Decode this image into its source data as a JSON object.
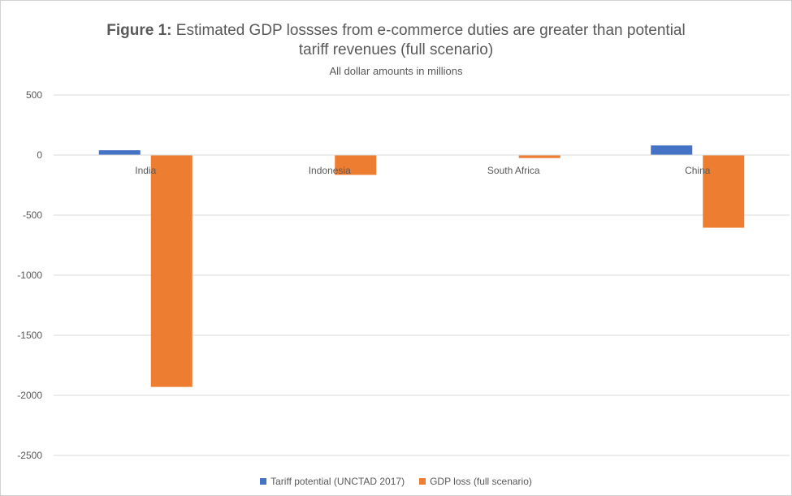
{
  "chart_data": {
    "type": "bar",
    "title_bold": "Figure 1:",
    "title_line1": "Estimated GDP lossses from e-commerce duties are greater than potential",
    "title_line2": "tariff revenues (full scenario)",
    "subtitle": "All dollar amounts in millions",
    "categories": [
      "India",
      "Indonesia",
      "South Africa",
      "China"
    ],
    "series": [
      {
        "name": "Tariff potential (UNCTAD 2017)",
        "color": "#4472C4",
        "values": [
          40,
          0,
          0,
          80
        ]
      },
      {
        "name": "GDP loss (full scenario)",
        "color": "#ED7D31",
        "values": [
          -1930,
          -165,
          -25,
          -605
        ]
      }
    ],
    "yticks": [
      500,
      0,
      -500,
      -1000,
      -1500,
      -2000,
      -2500
    ],
    "ylim": [
      -2500,
      500
    ],
    "grid": true,
    "legend_position": "bottom"
  }
}
